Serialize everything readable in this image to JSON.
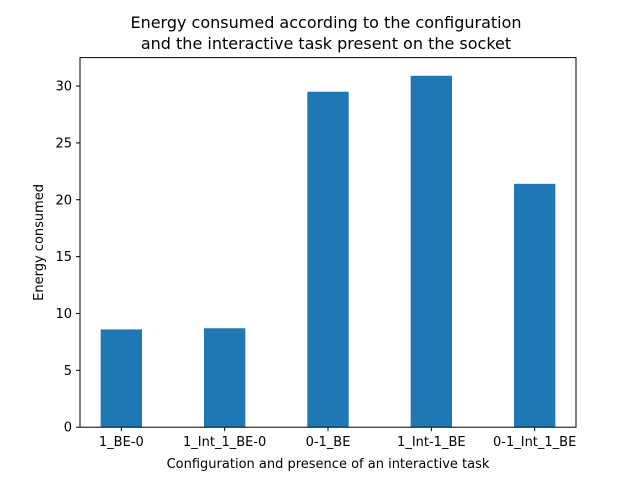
{
  "chart_data": {
    "type": "bar",
    "title_lines": [
      "Energy consumed according to the configuration",
      "and the interactive task present on the socket"
    ],
    "xlabel": "Configuration and presence of an interactive task",
    "ylabel": "Energy consumed",
    "categories": [
      "1_BE-0",
      "1_Int_1_BE-0",
      "0-1_BE",
      "1_Int-1_BE",
      "0-1_Int_1_BE"
    ],
    "values": [
      8.6,
      8.7,
      29.5,
      30.9,
      21.4
    ],
    "ylim": [
      0,
      32.5
    ],
    "yticks": [
      0,
      5,
      10,
      15,
      20,
      25,
      30
    ],
    "grid": false,
    "legend": "none",
    "bar_color": "#1f77b4"
  }
}
